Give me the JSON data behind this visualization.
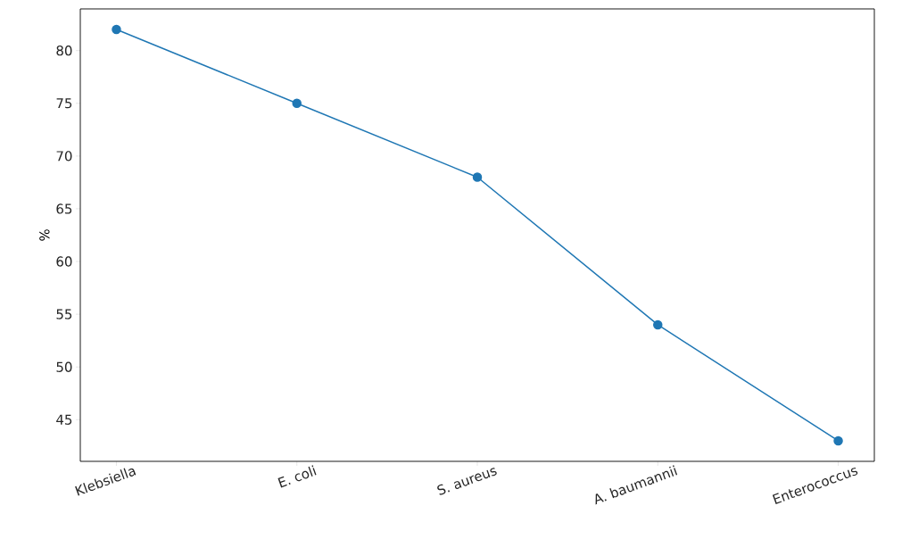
{
  "chart_data": {
    "type": "line",
    "ylabel": "%",
    "categories": [
      "Klebsiella",
      "E. coli",
      "S. aureus",
      "A. baumannii",
      "Enterococcus"
    ],
    "series": [
      {
        "color": "#1f77b4",
        "values": [
          82,
          75,
          68,
          54,
          43
        ]
      }
    ],
    "ylim": [
      41.05,
      83.95
    ],
    "yticks": [
      45,
      50,
      55,
      60,
      65,
      70,
      75,
      80
    ],
    "marker": "circle",
    "line_style": "solid"
  }
}
